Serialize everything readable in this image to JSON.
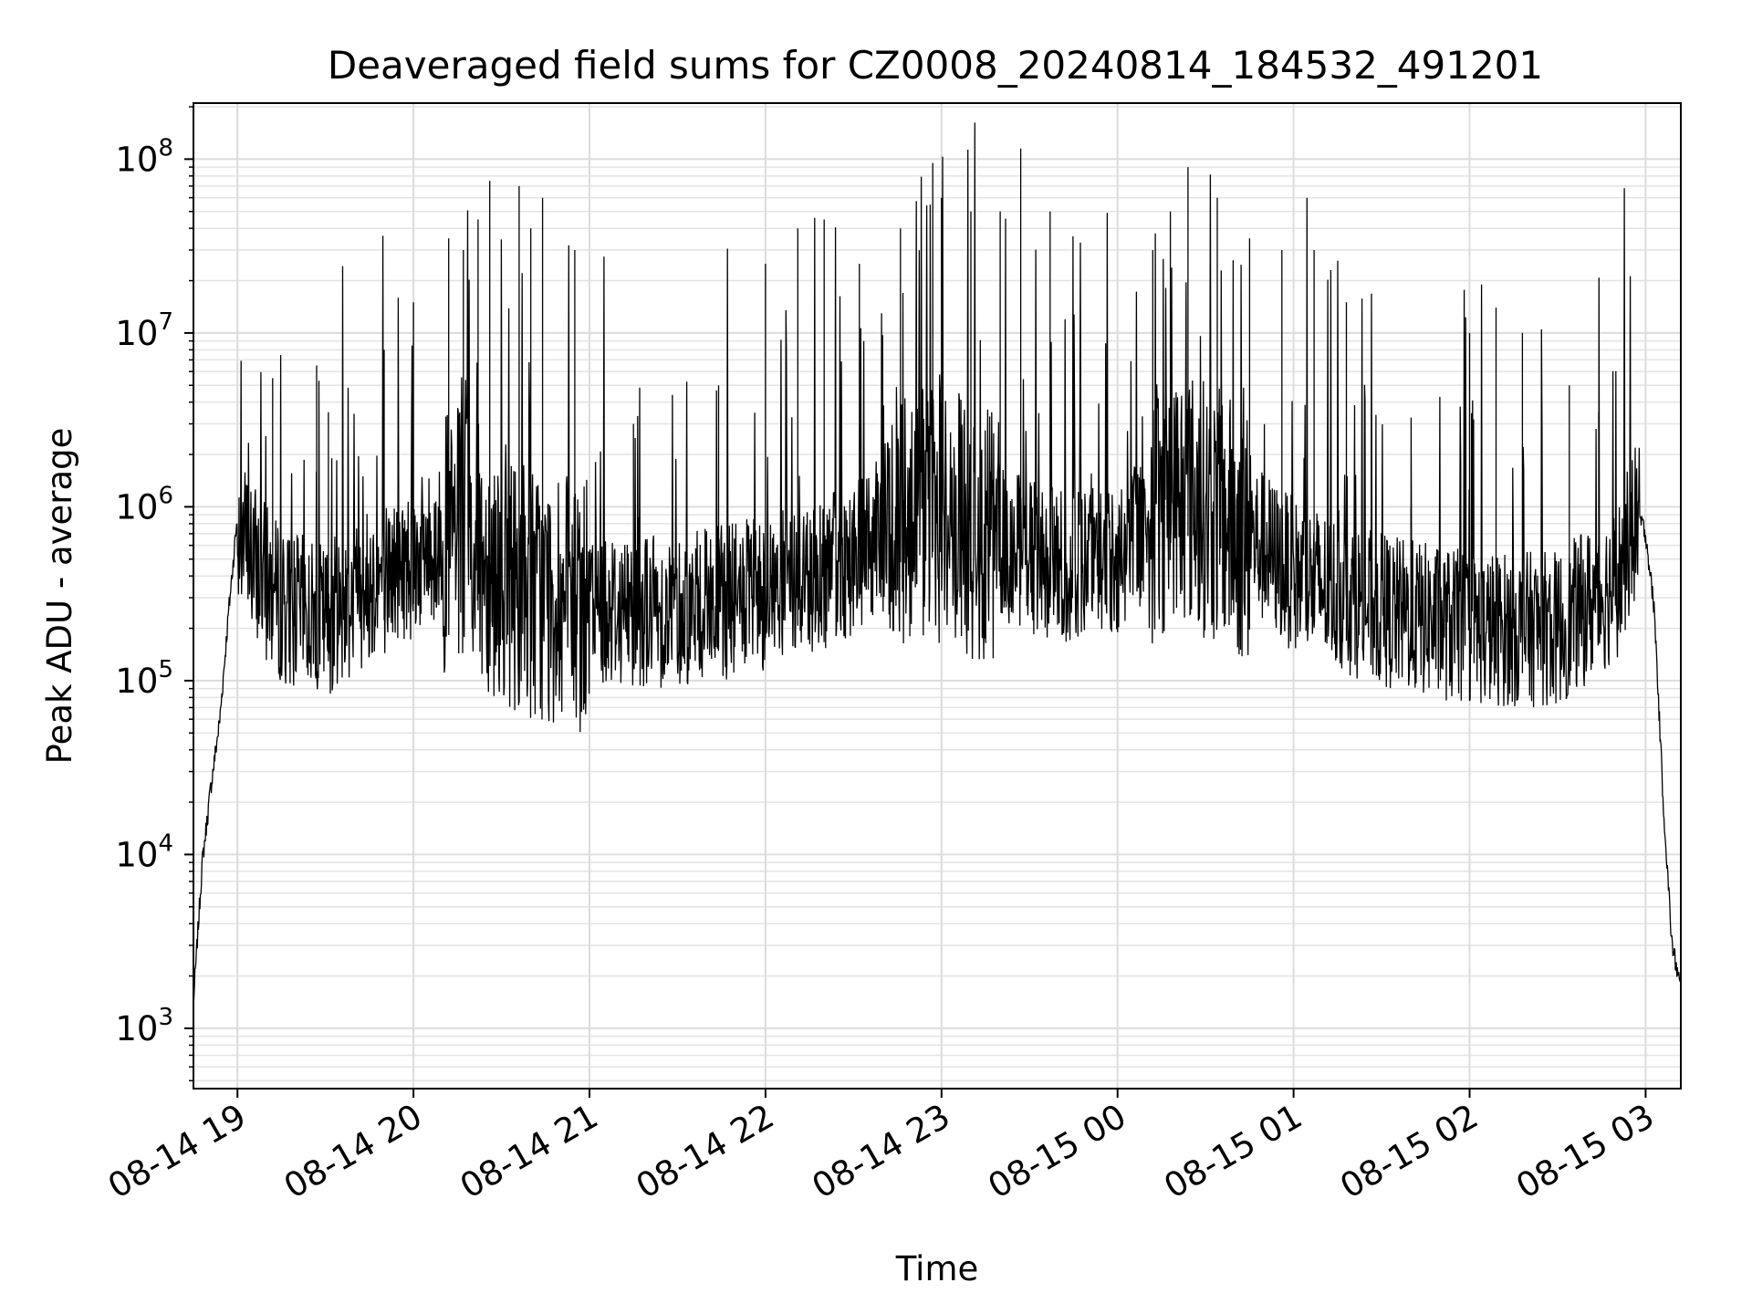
{
  "chart_data": {
    "type": "line",
    "title": "Deaveraged field sums for CZ0008_20240814_184532_491201",
    "xlabel": "Time",
    "ylabel": "Peak ADU - average",
    "yscale": "log",
    "grid": "major and minor, light gray",
    "line_color": "#000000",
    "xlim": [
      "2024-08-14 18:45",
      "2024-08-15 03:12"
    ],
    "ylim": [
      450,
      210000000
    ],
    "x_ticks": [
      "08-14 19",
      "08-14 20",
      "08-14 21",
      "08-14 22",
      "08-14 23",
      "08-15 00",
      "08-15 01",
      "08-15 02",
      "08-15 03"
    ],
    "x_tick_times": [
      "2024-08-14 19:00",
      "2024-08-14 20:00",
      "2024-08-14 21:00",
      "2024-08-14 22:00",
      "2024-08-14 23:00",
      "2024-08-15 00:00",
      "2024-08-15 01:00",
      "2024-08-15 02:00",
      "2024-08-15 03:00"
    ],
    "y_ticks": [
      {
        "value": 1000,
        "base": "10",
        "exp": "3"
      },
      {
        "value": 10000,
        "base": "10",
        "exp": "4"
      },
      {
        "value": 100000,
        "base": "10",
        "exp": "5"
      },
      {
        "value": 1000000,
        "base": "10",
        "exp": "6"
      },
      {
        "value": 10000000,
        "base": "10",
        "exp": "7"
      },
      {
        "value": 100000000,
        "base": "10",
        "exp": "8"
      }
    ],
    "series": [
      {
        "baseline": {
          "x": [
            "2024-08-14 18:45",
            "2024-08-14 18:48",
            "2024-08-14 18:51",
            "2024-08-14 18:54",
            "2024-08-14 18:57",
            "2024-08-14 19:00",
            "2024-08-14 19:05",
            "2024-08-14 19:15",
            "2024-08-14 19:30",
            "2024-08-14 19:45",
            "2024-08-14 20:00",
            "2024-08-14 20:15",
            "2024-08-14 20:30",
            "2024-08-14 20:45",
            "2024-08-14 21:00",
            "2024-08-14 21:30",
            "2024-08-14 22:00",
            "2024-08-14 22:30",
            "2024-08-14 22:50",
            "2024-08-14 23:00",
            "2024-08-14 23:20",
            "2024-08-14 23:40",
            "2024-08-15 00:00",
            "2024-08-15 00:20",
            "2024-08-15 00:40",
            "2024-08-15 01:00",
            "2024-08-15 01:30",
            "2024-08-15 02:00",
            "2024-08-15 02:30",
            "2024-08-15 02:50",
            "2024-08-15 02:57",
            "2024-08-15 03:00",
            "2024-08-15 03:03",
            "2024-08-15 03:06",
            "2024-08-15 03:09",
            "2024-08-15 03:12"
          ],
          "y": [
            1400,
            9000,
            25000,
            60000,
            250000,
            900000,
            550000,
            300000,
            250000,
            400000,
            550000,
            800000,
            500000,
            350000,
            300000,
            280000,
            350000,
            550000,
            1100000,
            1100000,
            700000,
            500000,
            550000,
            1500000,
            900000,
            450000,
            280000,
            220000,
            220000,
            400000,
            950000,
            700000,
            250000,
            20000,
            3000,
            1700
          ]
        },
        "spikes": [
          {
            "x": "2024-08-14 19:12",
            "y": 5500000
          },
          {
            "x": "2024-08-14 19:27",
            "y": 6500000
          },
          {
            "x": "2024-08-14 19:31",
            "y": 3500000
          },
          {
            "x": "2024-08-14 19:50",
            "y": 8000000
          },
          {
            "x": "2024-08-14 20:00",
            "y": 15000000
          },
          {
            "x": "2024-08-14 20:12",
            "y": 35000000
          },
          {
            "x": "2024-08-14 20:17",
            "y": 30000000
          },
          {
            "x": "2024-08-14 20:22",
            "y": 45000000
          },
          {
            "x": "2024-08-14 20:26",
            "y": 75000000
          },
          {
            "x": "2024-08-14 20:36",
            "y": 70000000
          },
          {
            "x": "2024-08-14 20:40",
            "y": 40000000
          },
          {
            "x": "2024-08-14 20:44",
            "y": 60000000
          },
          {
            "x": "2024-08-14 20:55",
            "y": 30000000
          },
          {
            "x": "2024-08-14 21:15",
            "y": 3000000
          },
          {
            "x": "2024-08-14 21:44",
            "y": 5000000
          },
          {
            "x": "2024-08-14 22:00",
            "y": 25000000
          },
          {
            "x": "2024-08-14 22:11",
            "y": 40000000
          },
          {
            "x": "2024-08-14 22:20",
            "y": 45000000
          },
          {
            "x": "2024-08-14 22:32",
            "y": 25000000
          },
          {
            "x": "2024-08-14 22:46",
            "y": 40000000
          },
          {
            "x": "2024-08-14 22:57",
            "y": 95000000
          },
          {
            "x": "2024-08-14 23:00",
            "y": 60000000
          },
          {
            "x": "2024-08-14 23:10",
            "y": 50000000
          },
          {
            "x": "2024-08-14 23:20",
            "y": 50000000
          },
          {
            "x": "2024-08-14 23:27",
            "y": 115000000
          },
          {
            "x": "2024-08-14 23:37",
            "y": 50000000
          },
          {
            "x": "2024-08-15 00:12",
            "y": 30000000
          },
          {
            "x": "2024-08-15 00:18",
            "y": 50000000
          },
          {
            "x": "2024-08-15 00:24",
            "y": 90000000
          },
          {
            "x": "2024-08-15 00:34",
            "y": 60000000
          },
          {
            "x": "2024-08-15 00:45",
            "y": 35000000
          },
          {
            "x": "2024-08-15 00:56",
            "y": 30000000
          },
          {
            "x": "2024-08-15 01:07",
            "y": 30000000
          },
          {
            "x": "2024-08-15 01:18",
            "y": 15000000
          },
          {
            "x": "2024-08-15 01:40",
            "y": 1000000
          },
          {
            "x": "2024-08-15 02:00",
            "y": 10000000
          },
          {
            "x": "2024-08-15 02:09",
            "y": 14000000
          },
          {
            "x": "2024-08-15 02:18",
            "y": 10000000
          },
          {
            "x": "2024-08-15 02:34",
            "y": 5000000
          },
          {
            "x": "2024-08-15 02:44",
            "y": 3500000
          }
        ]
      }
    ]
  }
}
